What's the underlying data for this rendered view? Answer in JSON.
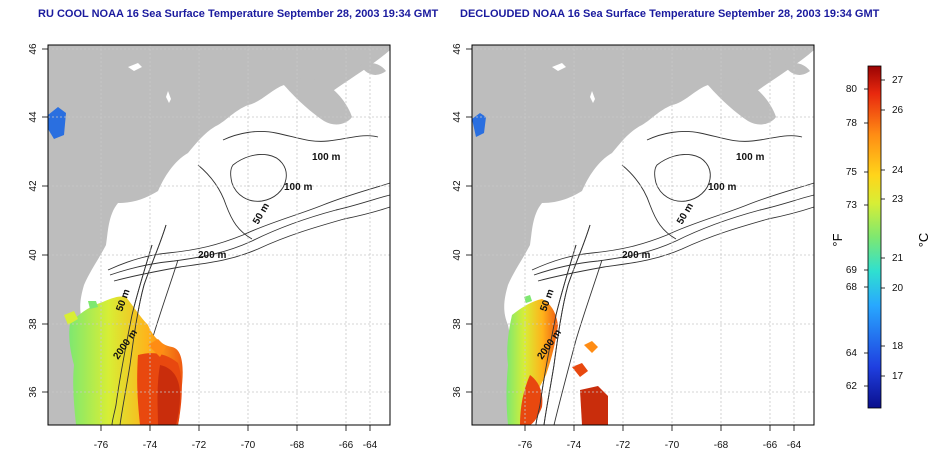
{
  "maps": [
    {
      "title": "RU COOL NOAA 16 Sea Surface Temperature September 28, 2003 19:34 GMT",
      "x_ticks": [
        "-76",
        "-74",
        "-72",
        "-70",
        "-68",
        "-66",
        "-64"
      ],
      "y_ticks": [
        "36",
        "38",
        "40",
        "42",
        "44",
        "46"
      ],
      "contour_labels": [
        "100 m",
        "100 m",
        "50 m",
        "200 m",
        "50 m",
        "2000 m"
      ]
    },
    {
      "title": "DECLOUDED NOAA 16 Sea Surface Temperature September 28, 2003 19:34 GMT",
      "x_ticks": [
        "-76",
        "-74",
        "-72",
        "-70",
        "-68",
        "-66",
        "-64"
      ],
      "y_ticks": [
        "36",
        "38",
        "40",
        "42",
        "44",
        "46"
      ],
      "contour_labels": [
        "100 m",
        "100 m",
        "50 m",
        "200 m",
        "50 m",
        "2000 m"
      ]
    }
  ],
  "colorbar": {
    "fahrenheit_label": "°F",
    "celsius_label": "°C",
    "fahrenheit_ticks": [
      "80",
      "78",
      "75",
      "73",
      "69",
      "68",
      "64",
      "62"
    ],
    "celsius_ticks": [
      "27",
      "26",
      "24",
      "23",
      "21",
      "20",
      "18",
      "17"
    ]
  },
  "colors": {
    "land": "#bdbdbd",
    "ocean": "#ffffff",
    "contour": "#333333",
    "title": "#1a1a9e",
    "grid": "#c8c8c8"
  }
}
